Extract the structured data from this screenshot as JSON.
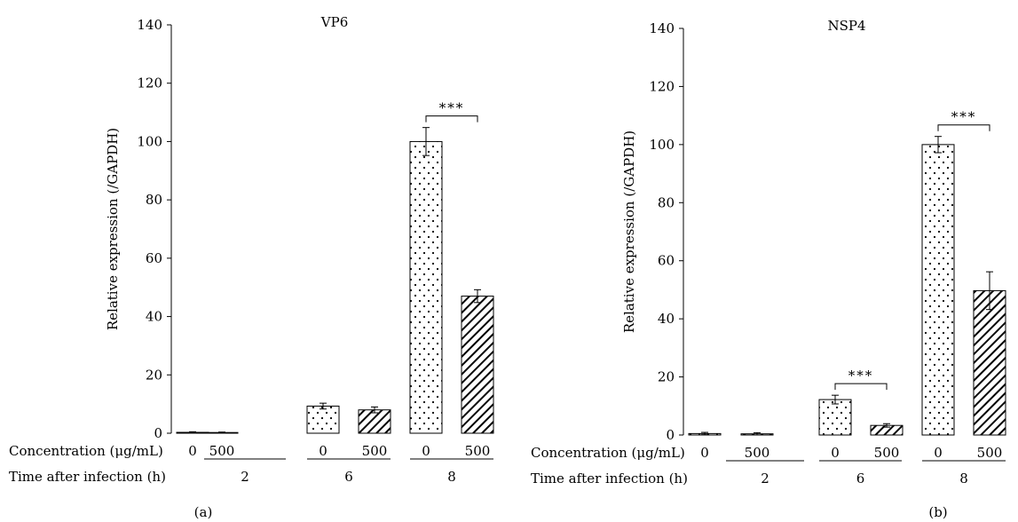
{
  "panels": [
    {
      "label": "(a)",
      "title": "VP6",
      "ylabel": "Relative expression (/GAPDH)",
      "conc_label": "Concentration (μg/mL)",
      "time_label": "Time after infection (h)"
    },
    {
      "label": "(b)",
      "title": "NSP4",
      "ylabel": "Relative expression (/GAPDH)",
      "conc_label": "Concentration (μg/mL)",
      "time_label": "Time after infection (h)"
    }
  ],
  "chart_data": [
    {
      "type": "bar",
      "title": "VP6",
      "ylabel": "Relative expression (/GAPDH)",
      "ylim": [
        0,
        140
      ],
      "yticks": [
        0,
        20,
        40,
        60,
        80,
        100,
        120,
        140
      ],
      "categories": [
        "0",
        "500",
        "0",
        "500",
        "0",
        "500"
      ],
      "concentrations": [
        "0",
        "500",
        "0",
        "500",
        "0",
        "500"
      ],
      "time_groups": [
        "2",
        "2",
        "6",
        "6",
        "8",
        "8"
      ],
      "time_labels": [
        "2",
        "6",
        "8"
      ],
      "values": [
        0.3,
        0.2,
        9.3,
        8.0,
        100,
        47
      ],
      "errors": [
        0.2,
        0.2,
        1.0,
        1.0,
        4.8,
        2.2
      ],
      "patterns": [
        "dots",
        "hatch",
        "dots",
        "hatch",
        "dots",
        "hatch"
      ],
      "significance": [
        {
          "bars": [
            4,
            5
          ],
          "text": "***"
        }
      ],
      "grid": false
    },
    {
      "type": "bar",
      "title": "NSP4",
      "ylabel": "Relative expression (/GAPDH)",
      "ylim": [
        0,
        140
      ],
      "yticks": [
        0,
        20,
        40,
        60,
        80,
        100,
        120,
        140
      ],
      "categories": [
        "0",
        "500",
        "0",
        "500",
        "0",
        "500"
      ],
      "concentrations": [
        "0",
        "500",
        "0",
        "500",
        "0",
        "500"
      ],
      "time_groups": [
        "2",
        "2",
        "6",
        "6",
        "8",
        "8"
      ],
      "time_labels": [
        "2",
        "6",
        "8"
      ],
      "values": [
        0.5,
        0.4,
        12.2,
        3.3,
        100,
        49.7
      ],
      "errors": [
        0.4,
        0.4,
        1.5,
        0.6,
        2.8,
        6.5
      ],
      "patterns": [
        "dots",
        "hatch",
        "dots",
        "hatch",
        "dots",
        "hatch"
      ],
      "significance": [
        {
          "bars": [
            2,
            3
          ],
          "text": "***"
        },
        {
          "bars": [
            4,
            5
          ],
          "text": "***"
        }
      ],
      "grid": false
    }
  ]
}
